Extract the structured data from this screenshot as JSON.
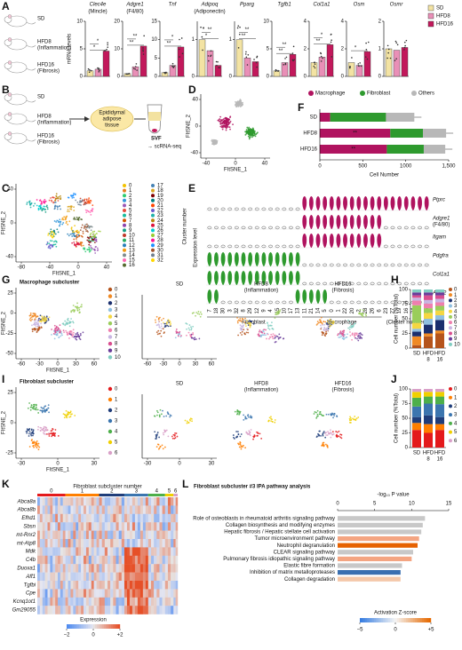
{
  "panel_letters": [
    "A",
    "B",
    "C",
    "D",
    "E",
    "F",
    "G",
    "H",
    "I",
    "J",
    "K",
    "L"
  ],
  "A": {
    "y_label": "mRNA levels",
    "mice": [
      [
        "SD"
      ],
      [
        "HFD8",
        "(Inflammation)"
      ],
      [
        "HFD16",
        "(Fibrosis)"
      ]
    ],
    "series": [
      {
        "name": "SD",
        "color": "#f3e3a3"
      },
      {
        "name": "HFD8",
        "color": "#e98fb7"
      },
      {
        "name": "HFD16",
        "color": "#c2185b"
      }
    ],
    "genes": [
      {
        "name": "Clec4e",
        "alias": "(Mincle)",
        "values": [
          1,
          1.3,
          4.6
        ],
        "ylim": [
          0,
          10
        ],
        "yticks": [
          0,
          5,
          10
        ],
        "sig": [
          "*",
          "*"
        ]
      },
      {
        "name": "Adgre1",
        "alias": "(F4/80)",
        "values": [
          1,
          3.5,
          11
        ],
        "ylim": [
          0,
          20
        ],
        "yticks": [
          0,
          10,
          20
        ],
        "sig": [
          "**",
          "**"
        ]
      },
      {
        "name": "Tnf",
        "values": [
          1,
          3,
          8
        ],
        "ylim": [
          0,
          15
        ],
        "yticks": [
          0,
          5,
          10,
          15
        ],
        "sig": [
          "**",
          "*"
        ]
      },
      {
        "name": "Adipoq",
        "alias": "(Adiponectin)",
        "values": [
          1,
          0.7,
          0.3
        ],
        "ylim": [
          0,
          1.5
        ],
        "yticks": [
          0,
          1
        ],
        "sig": [
          "*",
          "**"
        ]
      },
      {
        "name": "Pparg",
        "values": [
          1,
          0.5,
          0.4
        ],
        "ylim": [
          0,
          1.5
        ],
        "yticks": [
          0,
          1
        ],
        "sig": [
          "**",
          "**"
        ]
      },
      {
        "name": "Tgfb1",
        "values": [
          1,
          2.5,
          4
        ],
        "ylim": [
          0,
          10
        ],
        "yticks": [
          0,
          5,
          10
        ],
        "sig": [
          "**",
          "**"
        ]
      },
      {
        "name": "Col1a1",
        "values": [
          1,
          1.4,
          2.3
        ],
        "ylim": [
          0,
          4
        ],
        "yticks": [
          0,
          2,
          4
        ],
        "sig": [
          "**",
          "*"
        ]
      },
      {
        "name": "Osm",
        "values": [
          1,
          0.8,
          1.8
        ],
        "ylim": [
          0,
          4
        ],
        "yticks": [
          0,
          2,
          4
        ],
        "sig": [
          "*"
        ]
      },
      {
        "name": "Osmr",
        "values": [
          1,
          0.95,
          1.05
        ],
        "ylim": [
          0,
          2
        ],
        "yticks": [
          0,
          1,
          2
        ]
      }
    ]
  },
  "B": {
    "mice": [
      [
        "SD"
      ],
      [
        "HFD8",
        "(Inflammation)"
      ],
      [
        "HFD16",
        "(Fibrosis)"
      ]
    ],
    "tissue": [
      "Epididymal",
      "adipose",
      "tissue"
    ],
    "svf": "SVF",
    "seq": "→ scRNA-seq"
  },
  "C": {
    "x_label": "FItSNE_1",
    "y_label": "FItSNE_2",
    "xticks": [
      -80,
      -40,
      0,
      40
    ],
    "yticks": [
      -40,
      0,
      40
    ],
    "legend_title": "Cluster number",
    "clusters": [
      "0",
      "1",
      "2",
      "3",
      "4",
      "5",
      "6",
      "7",
      "8",
      "9",
      "10",
      "11",
      "12",
      "13",
      "14",
      "15",
      "16",
      "17",
      "18",
      "19",
      "20",
      "21",
      "22",
      "23",
      "24",
      "25",
      "26",
      "27",
      "28",
      "29",
      "30",
      "31",
      "32"
    ]
  },
  "D": {
    "x_label": "FItSNE_1",
    "y_label": "FItSNE_2",
    "xticks": [
      -40,
      0,
      40
    ],
    "yticks": [
      -40,
      0,
      40
    ]
  },
  "F": {
    "type": "stacked-barh",
    "categories": [
      "SD",
      "HFD8",
      "HFD16"
    ],
    "series": [
      {
        "name": "Macrophage",
        "color": "#b0135f",
        "values": [
          120,
          820,
          780
        ]
      },
      {
        "name": "Fibroblast",
        "color": "#2e9a2e",
        "values": [
          650,
          380,
          430
        ]
      },
      {
        "name": "Others",
        "color": "#b8b8b8",
        "values": [
          330,
          270,
          250
        ]
      }
    ],
    "xlim": [
      0,
      1500
    ],
    "xticks": [
      0,
      500,
      1000,
      {
        "value": 1500,
        "label": "1,500"
      }
    ],
    "x_label": "Cell Number",
    "annotations": [
      "**",
      "**"
    ]
  },
  "E": {
    "y_label": "Expression level",
    "genes": [
      [
        "Ptprc"
      ],
      [
        "Adgre1",
        "(F4/80)"
      ],
      [
        "Itgam"
      ],
      [
        "Pdgfra"
      ],
      [
        "Col1a1"
      ],
      [
        "Acta2"
      ]
    ],
    "clusters": [
      "7",
      "18",
      "30",
      "3",
      "32",
      "8",
      "29",
      "12",
      "9",
      "4",
      "15",
      "10",
      "17",
      "13",
      "11",
      "21",
      "14",
      "5",
      "0",
      "1",
      "22",
      "20",
      "2",
      "28",
      "26",
      "6",
      "23",
      "27",
      "19",
      "16",
      "24",
      "31",
      "25"
    ],
    "groups": [
      "Fibroblast",
      "Macrophage"
    ],
    "cluster_label": "(Cluster number)"
  },
  "G": {
    "title": "Macrophage subcluster",
    "x_label": "FItSNE_1",
    "y_label": "FItSNE_2",
    "xticks": [
      -60,
      -30,
      0,
      30,
      60
    ],
    "yticks": [
      -50,
      -25,
      0,
      25
    ],
    "conditions": [
      [
        "SD"
      ],
      [
        "HFD8",
        "(Inflammation)"
      ],
      [
        "HFD16",
        "(Fibrosis)"
      ]
    ],
    "small_xticks": [
      -60,
      -30,
      0,
      30,
      60
    ],
    "legend": [
      "0",
      "1",
      "2",
      "3",
      "4",
      "5",
      "6",
      "7",
      "8",
      "9",
      "10"
    ]
  },
  "H": {
    "type": "stacked-bar",
    "y_label": "Cell number (%Total)",
    "categories": [
      [
        "SD"
      ],
      [
        "HFD",
        "8"
      ],
      [
        "HFD",
        "16"
      ]
    ],
    "ylim": [
      0,
      100
    ],
    "yticks": [
      0,
      25,
      50,
      75,
      100
    ],
    "series": [
      {
        "name": "0",
        "color": "#b5541c",
        "values": [
          5,
          20,
          25
        ]
      },
      {
        "name": "1",
        "color": "#f08a24",
        "values": [
          15,
          5,
          5
        ]
      },
      {
        "name": "2",
        "color": "#1b2f6e",
        "values": [
          8,
          15,
          18
        ]
      },
      {
        "name": "3",
        "color": "#8fbfe0",
        "values": [
          5,
          10,
          8
        ]
      },
      {
        "name": "4",
        "color": "#f5d742",
        "values": [
          10,
          10,
          8
        ]
      },
      {
        "name": "5",
        "color": "#9acd5a",
        "values": [
          30,
          8,
          8
        ]
      },
      {
        "name": "6",
        "color": "#ef7fae",
        "values": [
          8,
          8,
          6
        ]
      },
      {
        "name": "7",
        "color": "#c8b6e2",
        "values": [
          5,
          6,
          6
        ]
      },
      {
        "name": "8",
        "color": "#d94e8f",
        "values": [
          4,
          8,
          6
        ]
      },
      {
        "name": "9",
        "color": "#6a3d9a",
        "values": [
          5,
          5,
          5
        ]
      },
      {
        "name": "10",
        "color": "#80cdc1",
        "values": [
          5,
          5,
          5
        ]
      }
    ]
  },
  "I": {
    "title": "Fibroblast subcluster",
    "x_label": "FItSNE_1",
    "y_label": "FItSNE_2",
    "xticks": [
      -30,
      0,
      30
    ],
    "yticks": [
      -25,
      0,
      25
    ],
    "conditions": [
      [
        "SD"
      ],
      [
        "HFD8",
        "(Inflammation)"
      ],
      [
        "HFD16",
        "(Fibrosis)"
      ]
    ],
    "small_xticks": [
      -30,
      0,
      30
    ],
    "legend": [
      "0",
      "1",
      "2",
      "3",
      "4",
      "5",
      "6"
    ]
  },
  "J": {
    "type": "stacked-bar",
    "y_label": "Cell number (%Total)",
    "categories": [
      [
        "SD"
      ],
      [
        "HFD",
        "8"
      ],
      [
        "HFD",
        "16"
      ]
    ],
    "ylim": [
      0,
      100
    ],
    "yticks": [
      0,
      25,
      50,
      75,
      100
    ],
    "series": [
      {
        "name": "0",
        "color": "#e41a1c",
        "values": [
          30,
          25,
          30
        ]
      },
      {
        "name": "1",
        "color": "#ff7f00",
        "values": [
          12,
          15,
          10
        ]
      },
      {
        "name": "2",
        "color": "#1f3d7a",
        "values": [
          10,
          15,
          12
        ]
      },
      {
        "name": "3",
        "color": "#3b75af",
        "values": [
          18,
          20,
          22
        ]
      },
      {
        "name": "4",
        "color": "#4daf4a",
        "values": [
          15,
          12,
          13
        ]
      },
      {
        "name": "5",
        "color": "#f0d000",
        "values": [
          10,
          8,
          8
        ]
      },
      {
        "name": "6",
        "color": "#d9a0c8",
        "values": [
          5,
          5,
          5
        ]
      }
    ]
  },
  "K": {
    "title": "Fibroblast subcluster number",
    "columns": [
      "0",
      "1",
      "2",
      "3",
      "4",
      "5",
      "6"
    ],
    "genes": [
      "Abca8a",
      "Abca8b",
      "Efhd1",
      "Sbsn",
      "mt-Rnr2",
      "mt-Atp8",
      "Mdk",
      "C4b",
      "Duoxa1",
      "Aff1",
      "Tgfbi",
      "Cpe",
      "Kcnq1ot1",
      "Gm29055"
    ],
    "colorbar_label": "Expression",
    "colorbar_ticks": [
      {
        "value": -2,
        "label": "−2"
      },
      0,
      {
        "value": 2,
        "label": "+2"
      }
    ]
  },
  "L": {
    "type": "barh",
    "title": "Fibroblast subcluster #3 IPA pathway analysis",
    "x_label": "-log₁₀ P value",
    "xlim": [
      0,
      15
    ],
    "xticks": [
      0,
      5,
      10,
      15
    ],
    "pathways": [
      {
        "name": "Role of osteoblasts in rheumatoid arthritis signaling pathway",
        "value": 11.8,
        "color": "#c8c8c8"
      },
      {
        "name": "Collagen biosynthesis and modifying enzymes",
        "value": 11.5,
        "color": "#c8c8c8"
      },
      {
        "name": "Hepatic fibrosis / Hepatic stellate cell activation",
        "value": 11.3,
        "color": "#c8c8c8"
      },
      {
        "name": "Tumor microenvironment pathway",
        "value": 11,
        "color": "#f4a582"
      },
      {
        "name": "Neutrophil degranulation",
        "value": 10.8,
        "color": "#e66101"
      },
      {
        "name": "CLEAR signaling pathway",
        "value": 10.2,
        "color": "#c8c8c8"
      },
      {
        "name": "Pulmonary fibrosis idiopathic signaling pathway",
        "value": 10,
        "color": "#f4a582"
      },
      {
        "name": "Elastic fibre formation",
        "value": 8.7,
        "color": "#c8c8c8"
      },
      {
        "name": "Inhibition of matrix metalloproteases",
        "value": 8.5,
        "color": "#3a6fb0"
      },
      {
        "name": "Collagen degradation",
        "value": 8.5,
        "color": "#f4c7a8"
      }
    ],
    "colorbar_label": "Activation Z-score",
    "colorbar_ticks": [
      {
        "value": -5,
        "label": "−5"
      },
      0,
      {
        "value": 5,
        "label": "+5"
      }
    ]
  }
}
